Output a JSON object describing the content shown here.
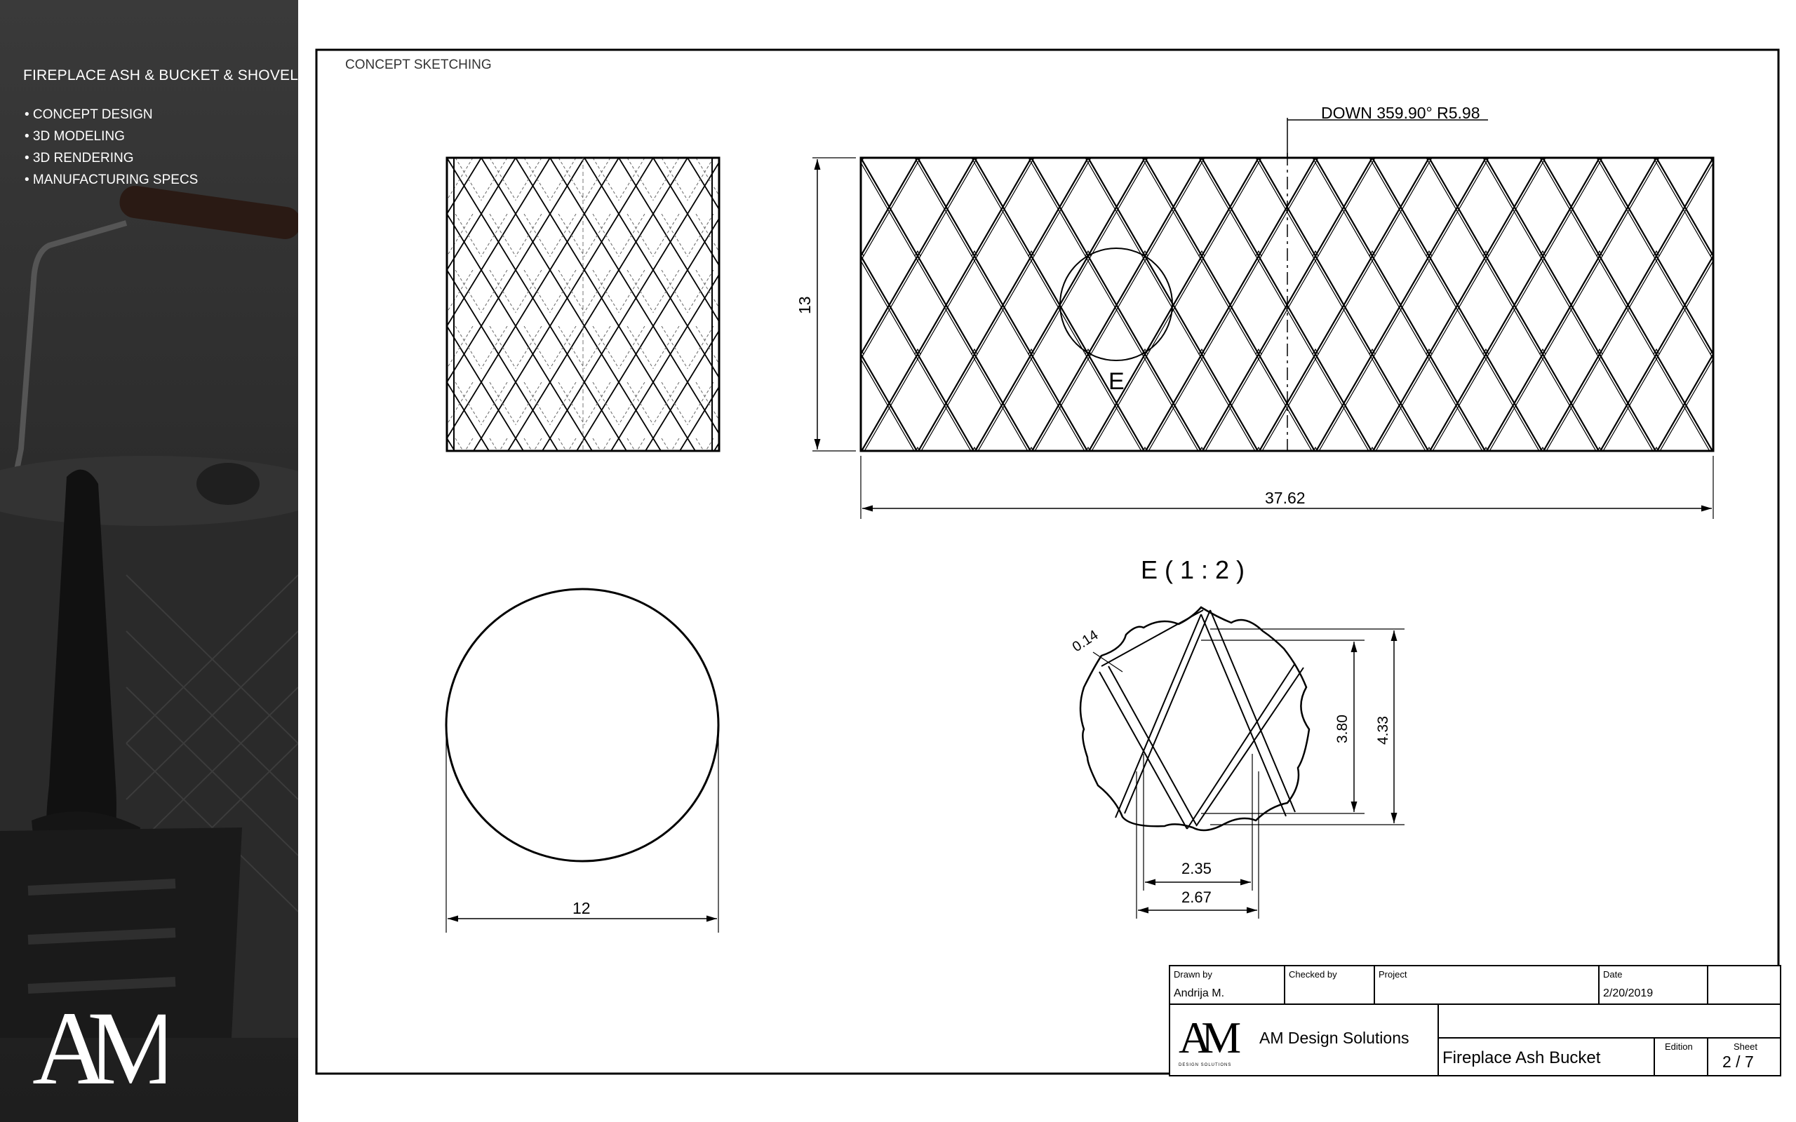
{
  "sidebar": {
    "title": "FIREPLACE ASH & BUCKET & SHOVEL",
    "services": [
      "• CONCEPT DESIGN",
      "• 3D MODELING",
      "• 3D RENDERING",
      "• MANUFACTURING SPECS"
    ],
    "logo_text": "AM"
  },
  "sheet": {
    "header": "CONCEPT SKETCHING",
    "annotation": "DOWN 359.90° R5.98",
    "dim_height": "13",
    "dim_width": "37.62",
    "dim_diameter": "12",
    "detail_marker": "E",
    "detail_title": "E ( 1 : 2 )",
    "detail_dims": {
      "line": "0.14",
      "inner_h": "3.80",
      "outer_h": "4.33",
      "inner_w": "2.35",
      "outer_w": "2.67"
    }
  },
  "titleblock": {
    "drawn_by_label": "Drawn by",
    "drawn_by": "Andrija M.",
    "checked_by_label": "Checked by",
    "project_label": "Project",
    "date_label": "Date",
    "date": "2/20/2019",
    "company": "AM Design Solutions",
    "logo_sub": "DESIGN SOLUTIONS",
    "drawing_title": "Fireplace Ash Bucket",
    "edition_label": "Edition",
    "sheet_label": "Sheet",
    "sheet": "2 / 7"
  },
  "colors": {
    "sidebar": "#2b2b2b",
    "line": "#000000",
    "paper": "#ffffff"
  }
}
